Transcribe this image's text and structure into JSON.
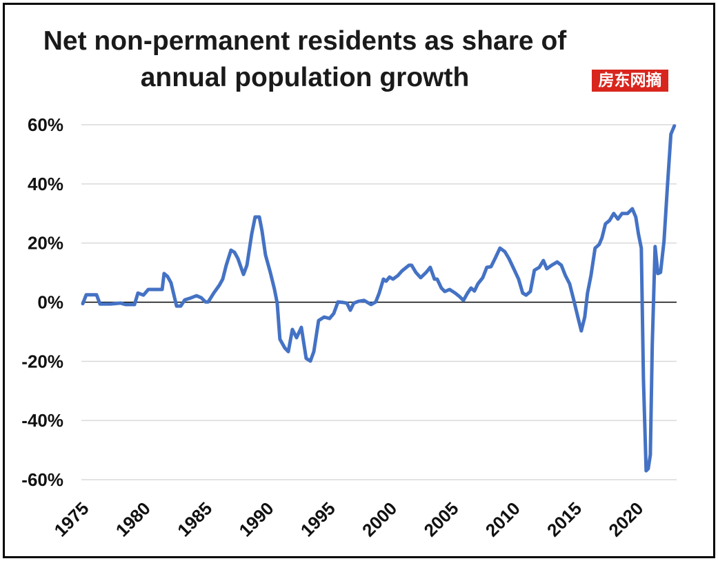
{
  "chart_data": {
    "type": "line",
    "title": "Net non-permanent residents as share of annual population growth",
    "xlim": [
      1975,
      2023.25
    ],
    "ylim": [
      -60,
      60
    ],
    "grid": true,
    "x_ticks": [
      1975,
      1980,
      1985,
      1990,
      1995,
      2000,
      2005,
      2010,
      2015,
      2020
    ],
    "x_tick_labels": [
      "1975",
      "1980",
      "1985",
      "1990",
      "1995",
      "2000",
      "2005",
      "2010",
      "2015",
      "2020"
    ],
    "y_ticks": [
      60,
      40,
      20,
      0,
      -20,
      -40,
      -60
    ],
    "y_tick_labels": [
      "60%",
      "40%",
      "20%",
      "0%",
      "-20%",
      "-40%",
      "-60%"
    ],
    "colors": {
      "grid": "#d9d9d9",
      "zero_line": "#000000"
    },
    "series": [
      {
        "color": "#4472c4",
        "points": [
          [
            1975.0,
            -0.5
          ],
          [
            1975.28,
            2.5
          ],
          [
            1976.12,
            2.5
          ],
          [
            1976.4,
            -0.6
          ],
          [
            1977.24,
            -0.6
          ],
          [
            1978.08,
            -0.3
          ],
          [
            1978.47,
            -0.8
          ],
          [
            1979.2,
            -0.8
          ],
          [
            1979.48,
            3.1
          ],
          [
            1979.92,
            2.4
          ],
          [
            1980.32,
            4.3
          ],
          [
            1981.44,
            4.3
          ],
          [
            1981.6,
            9.7
          ],
          [
            1981.88,
            8.7
          ],
          [
            1982.16,
            6.6
          ],
          [
            1982.61,
            -1.3
          ],
          [
            1982.95,
            -1.3
          ],
          [
            1983.28,
            0.8
          ],
          [
            1983.67,
            1.3
          ],
          [
            1984.23,
            2.2
          ],
          [
            1984.62,
            1.5
          ],
          [
            1984.96,
            0.1
          ],
          [
            1985.18,
            0.1
          ],
          [
            1985.63,
            3.1
          ],
          [
            1986.08,
            5.7
          ],
          [
            1986.36,
            7.8
          ],
          [
            1986.64,
            12.5
          ],
          [
            1987.03,
            17.6
          ],
          [
            1987.31,
            16.9
          ],
          [
            1987.59,
            14.8
          ],
          [
            1988.04,
            9.4
          ],
          [
            1988.32,
            12.5
          ],
          [
            1988.71,
            23.0
          ],
          [
            1988.99,
            28.8
          ],
          [
            1989.33,
            28.8
          ],
          [
            1989.55,
            24.1
          ],
          [
            1989.83,
            16.0
          ],
          [
            1990.22,
            10.1
          ],
          [
            1990.56,
            4.3
          ],
          [
            1990.78,
            -0.3
          ],
          [
            1991.0,
            -12.5
          ],
          [
            1991.4,
            -15.5
          ],
          [
            1991.68,
            -16.7
          ],
          [
            1992.01,
            -9.2
          ],
          [
            1992.35,
            -12.0
          ],
          [
            1992.74,
            -8.5
          ],
          [
            1993.13,
            -19.0
          ],
          [
            1993.47,
            -19.9
          ],
          [
            1993.75,
            -16.7
          ],
          [
            1994.14,
            -6.2
          ],
          [
            1994.59,
            -5.0
          ],
          [
            1995.03,
            -5.5
          ],
          [
            1995.37,
            -3.8
          ],
          [
            1995.71,
            0.1
          ],
          [
            1996.15,
            -0.1
          ],
          [
            1996.43,
            -0.3
          ],
          [
            1996.71,
            -2.7
          ],
          [
            1996.99,
            -0.3
          ],
          [
            1997.38,
            0.3
          ],
          [
            1997.83,
            0.6
          ],
          [
            1998.39,
            -0.8
          ],
          [
            1998.78,
            0.1
          ],
          [
            1999.06,
            3.1
          ],
          [
            1999.4,
            7.8
          ],
          [
            1999.62,
            7.1
          ],
          [
            1999.9,
            8.5
          ],
          [
            2000.18,
            7.8
          ],
          [
            2000.57,
            9.0
          ],
          [
            2000.91,
            10.6
          ],
          [
            2001.47,
            12.5
          ],
          [
            2001.69,
            12.5
          ],
          [
            2002.03,
            10.1
          ],
          [
            2002.42,
            8.3
          ],
          [
            2002.87,
            10.1
          ],
          [
            2003.2,
            11.8
          ],
          [
            2003.54,
            7.8
          ],
          [
            2003.76,
            7.8
          ],
          [
            2004.1,
            4.8
          ],
          [
            2004.38,
            3.6
          ],
          [
            2004.77,
            4.3
          ],
          [
            2005.22,
            3.1
          ],
          [
            2005.55,
            2.0
          ],
          [
            2005.89,
            0.6
          ],
          [
            2006.23,
            3.1
          ],
          [
            2006.51,
            4.8
          ],
          [
            2006.79,
            3.8
          ],
          [
            2007.06,
            6.2
          ],
          [
            2007.46,
            8.3
          ],
          [
            2007.79,
            11.8
          ],
          [
            2008.13,
            12.0
          ],
          [
            2008.46,
            14.8
          ],
          [
            2008.86,
            18.3
          ],
          [
            2009.25,
            17.1
          ],
          [
            2009.58,
            14.8
          ],
          [
            2009.98,
            11.3
          ],
          [
            2010.37,
            7.8
          ],
          [
            2010.7,
            3.1
          ],
          [
            2010.98,
            2.4
          ],
          [
            2011.32,
            3.6
          ],
          [
            2011.65,
            10.8
          ],
          [
            2012.05,
            11.8
          ],
          [
            2012.38,
            14.1
          ],
          [
            2012.66,
            11.3
          ],
          [
            2013.05,
            12.5
          ],
          [
            2013.5,
            13.6
          ],
          [
            2013.84,
            12.5
          ],
          [
            2014.17,
            9.0
          ],
          [
            2014.51,
            6.2
          ],
          [
            2014.84,
            0.8
          ],
          [
            2015.18,
            -5.0
          ],
          [
            2015.46,
            -9.7
          ],
          [
            2015.74,
            -5.0
          ],
          [
            2015.96,
            3.1
          ],
          [
            2016.24,
            9.0
          ],
          [
            2016.58,
            18.3
          ],
          [
            2016.91,
            19.5
          ],
          [
            2017.14,
            21.8
          ],
          [
            2017.42,
            26.5
          ],
          [
            2017.75,
            27.6
          ],
          [
            2018.09,
            30.0
          ],
          [
            2018.43,
            28.1
          ],
          [
            2018.76,
            30.0
          ],
          [
            2019.21,
            30.0
          ],
          [
            2019.6,
            31.6
          ],
          [
            2019.88,
            28.8
          ],
          [
            2020.1,
            23.0
          ],
          [
            2020.33,
            18.3
          ],
          [
            2020.5,
            -26.0
          ],
          [
            2020.72,
            -57.0
          ],
          [
            2020.89,
            -56.3
          ],
          [
            2021.06,
            -51.6
          ],
          [
            2021.22,
            -14.3
          ],
          [
            2021.45,
            18.8
          ],
          [
            2021.67,
            9.7
          ],
          [
            2021.89,
            10.1
          ],
          [
            2022.17,
            20.6
          ],
          [
            2022.45,
            39.3
          ],
          [
            2022.73,
            56.8
          ],
          [
            2023.01,
            59.6
          ]
        ]
      }
    ]
  },
  "watermark": {
    "text": "房东网摘",
    "background_color": "#d8251d",
    "text_color": "#ffffff"
  }
}
